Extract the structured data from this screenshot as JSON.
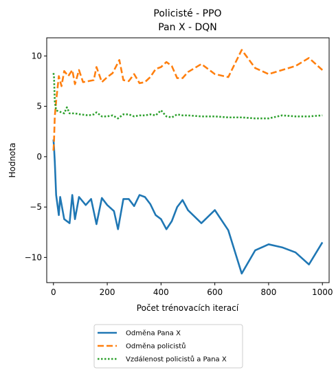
{
  "chart_data": {
    "type": "line",
    "title_lines": [
      "Policisté - PPO",
      "Pan X - DQN"
    ],
    "xlabel": "Počet trénovacích iterací",
    "ylabel": "Hodnota",
    "xlim": [
      -25,
      1025
    ],
    "ylim": [
      -12.5,
      11.8
    ],
    "xticks": [
      0,
      200,
      400,
      600,
      800,
      1000
    ],
    "yticks": [
      -10,
      -5,
      0,
      5,
      10
    ],
    "xtick_labels": [
      "0",
      "200",
      "400",
      "600",
      "800",
      "1000"
    ],
    "ytick_labels": [
      "−10",
      "−5",
      "0",
      "5",
      "10"
    ],
    "grid": false,
    "legend_position": "below plot",
    "series": [
      {
        "name": "Odměna Pana X",
        "color": "#1f77b4",
        "style": "solid",
        "x": [
          0,
          2,
          5,
          10,
          20,
          25,
          40,
          60,
          70,
          80,
          95,
          120,
          140,
          160,
          180,
          200,
          225,
          240,
          260,
          280,
          300,
          320,
          340,
          360,
          380,
          400,
          420,
          440,
          460,
          480,
          500,
          550,
          600,
          650,
          700,
          750,
          800,
          850,
          900,
          950,
          1000
        ],
        "y": [
          1.7,
          1.0,
          -0.5,
          -3.8,
          -5.8,
          -4.0,
          -6.2,
          -6.6,
          -3.8,
          -6.2,
          -4.0,
          -4.8,
          -4.2,
          -6.7,
          -4.1,
          -4.8,
          -5.4,
          -7.2,
          -4.2,
          -4.2,
          -4.9,
          -3.8,
          -4.0,
          -4.7,
          -5.8,
          -6.2,
          -7.2,
          -6.4,
          -5.0,
          -4.3,
          -5.3,
          -6.6,
          -5.3,
          -7.3,
          -11.6,
          -9.3,
          -8.7,
          -9.0,
          -9.5,
          -10.7,
          -8.5
        ]
      },
      {
        "name": "Odměna policistů",
        "color": "#ff7f0e",
        "style": "dashed",
        "x": [
          0,
          2,
          5,
          10,
          20,
          30,
          40,
          55,
          70,
          80,
          95,
          110,
          130,
          150,
          160,
          180,
          200,
          220,
          245,
          260,
          280,
          300,
          320,
          340,
          360,
          380,
          400,
          420,
          440,
          460,
          480,
          500,
          550,
          600,
          650,
          700,
          750,
          800,
          850,
          900,
          950,
          1000
        ],
        "y": [
          0.6,
          1.5,
          4.0,
          5.5,
          8.0,
          7.0,
          8.5,
          8.0,
          8.6,
          7.2,
          8.6,
          7.4,
          7.5,
          7.6,
          8.9,
          7.4,
          7.9,
          8.3,
          9.6,
          7.6,
          7.5,
          8.2,
          7.3,
          7.4,
          7.9,
          8.7,
          8.9,
          9.4,
          9.0,
          7.8,
          7.8,
          8.4,
          9.2,
          8.2,
          7.9,
          10.6,
          8.8,
          8.2,
          8.6,
          9.0,
          9.8,
          8.6
        ]
      },
      {
        "name": "Vzdálenost policistů a Pana X",
        "color": "#2ca02c",
        "style": "dotted",
        "x": [
          0,
          2,
          5,
          10,
          20,
          30,
          40,
          50,
          60,
          80,
          100,
          130,
          150,
          160,
          180,
          200,
          220,
          240,
          260,
          280,
          300,
          320,
          340,
          360,
          380,
          400,
          420,
          440,
          460,
          480,
          500,
          550,
          600,
          650,
          700,
          750,
          800,
          850,
          900,
          950,
          1000
        ],
        "y": [
          8.3,
          8.0,
          5.5,
          4.6,
          4.5,
          4.4,
          4.3,
          4.9,
          4.3,
          4.3,
          4.2,
          4.1,
          4.2,
          4.4,
          4.0,
          4.0,
          4.1,
          3.8,
          4.2,
          4.2,
          4.0,
          4.1,
          4.1,
          4.2,
          4.1,
          4.6,
          4.0,
          3.9,
          4.2,
          4.1,
          4.1,
          4.0,
          4.0,
          3.9,
          3.9,
          3.8,
          3.8,
          4.1,
          4.0,
          4.0,
          4.1
        ]
      }
    ]
  }
}
